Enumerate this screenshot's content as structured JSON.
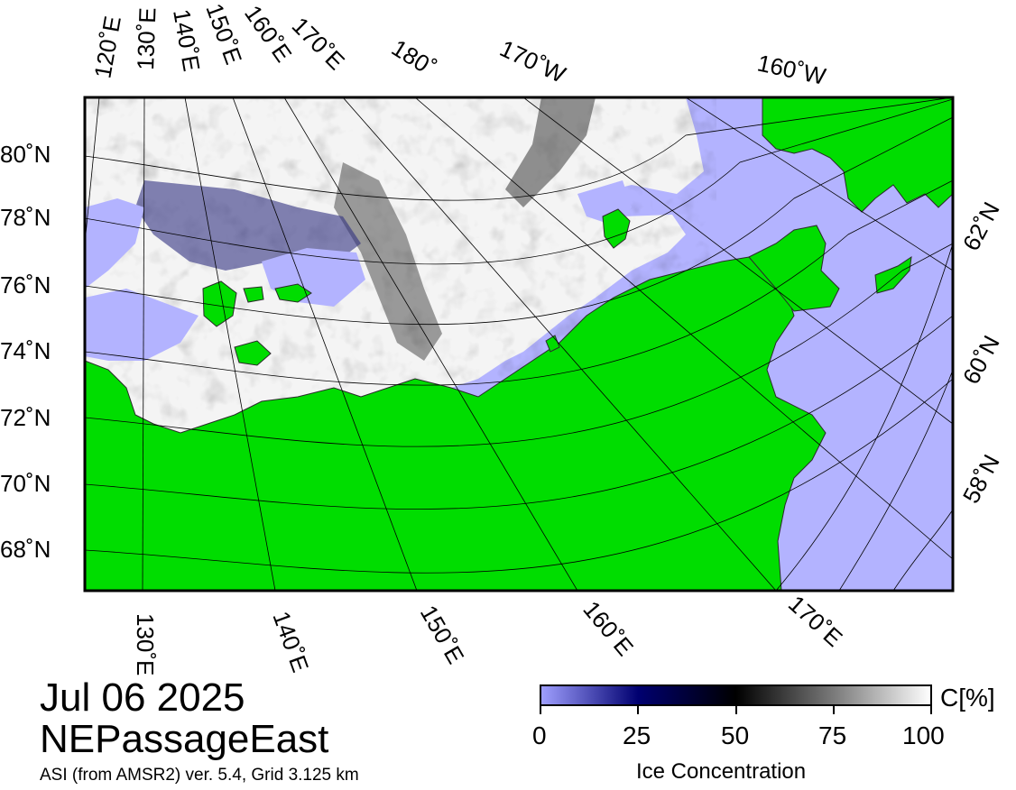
{
  "title": {
    "date": "Jul 06 2025",
    "region": "NEPassageEast",
    "product": "ASI (from AMSR2) ver. 5.4,  Grid 3.125 km"
  },
  "colors": {
    "land": "#00dd00",
    "open_water": "#b3b3ff",
    "ice_full": "#ffffff",
    "ice_mid": "#000000",
    "ice_low": "#000060",
    "frame": "#000000"
  },
  "graticule": {
    "top_lon_labels": [
      "120˚E",
      "130˚E",
      "140˚E",
      "150˚E",
      "160˚E",
      "170˚E",
      "180˚",
      "170˚W",
      "160˚W"
    ],
    "bottom_lon_labels": [
      "130˚E",
      "140˚E",
      "150˚E",
      "160˚E",
      "170˚E"
    ],
    "left_lat_labels": [
      "80˚N",
      "78˚N",
      "76˚N",
      "74˚N",
      "72˚N",
      "70˚N",
      "68˚N"
    ],
    "right_lat_labels": [
      "62˚N",
      "60˚N",
      "58˚N"
    ]
  },
  "colorbar": {
    "label": "Ice Concentration",
    "unit": "C[%]",
    "ticks": [
      "0",
      "25",
      "50",
      "75",
      "100"
    ]
  }
}
